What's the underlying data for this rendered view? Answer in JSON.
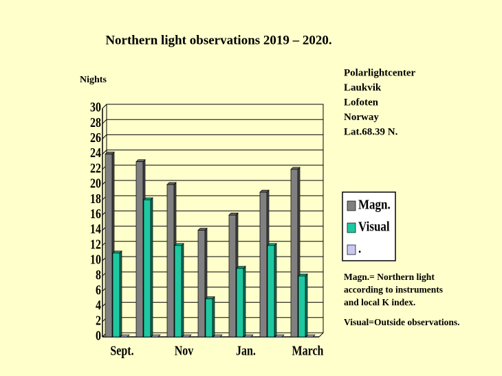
{
  "chart_data": {
    "type": "bar",
    "title": "Northern light observations 2019 – 2020.",
    "y_label": "Nights",
    "location": [
      "Polarlightcenter",
      "Laukvik",
      "Lofoten",
      "Norway",
      "Lat.68.39 N."
    ],
    "notes": [
      "Magn.= Northern light",
      "according to instruments",
      "and local K index."
    ],
    "visual_note": "Visual=Outside observations.",
    "categories": [
      "Sept.",
      null,
      "Nov",
      null,
      "Jan.",
      null,
      "March"
    ],
    "series": [
      {
        "name": "Magn.",
        "color": "#808080",
        "values": [
          24,
          23,
          20,
          14,
          16,
          19,
          22
        ]
      },
      {
        "name": "Visual",
        "color": "#1ec8a0",
        "values": [
          11,
          18,
          12,
          5,
          9,
          12,
          8
        ]
      },
      {
        "name": ".",
        "color": "#c8c8f0",
        "values": [
          0,
          0,
          0,
          0,
          0,
          0,
          0
        ]
      }
    ],
    "ylim": [
      0,
      30
    ],
    "yticks": [
      0,
      2,
      4,
      6,
      8,
      10,
      12,
      14,
      16,
      18,
      20,
      22,
      24,
      26,
      28,
      30
    ],
    "grid": true
  }
}
